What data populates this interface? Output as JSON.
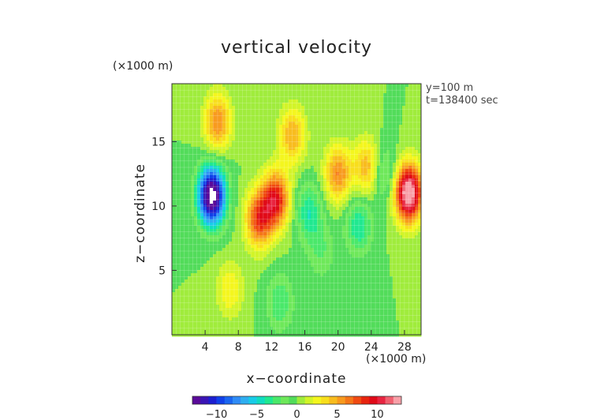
{
  "chart_data": {
    "type": "heatmap",
    "title": "vertical velocity",
    "xlabel": "x−coordinate",
    "ylabel": "z−coordinate",
    "x_unit": "(×1000 m)",
    "y_unit": "(×1000 m)",
    "annotations": [
      "y=100 m",
      "t=138400 sec"
    ],
    "xlim": [
      0,
      30
    ],
    "ylim": [
      0,
      19.5
    ],
    "x_ticks": [
      4,
      8,
      12,
      16,
      20,
      24,
      28
    ],
    "y_ticks": [
      5,
      10,
      15
    ],
    "colorbar": {
      "range": [
        -13,
        13
      ],
      "ticks": [
        -10,
        -5,
        0,
        5,
        10
      ],
      "tick_labels": [
        "−10",
        "−5",
        "0",
        "5",
        "10"
      ],
      "colors": [
        "#5a0a9a",
        "#3a14b4",
        "#1c1ed0",
        "#1040e8",
        "#1a66f0",
        "#2f8cf6",
        "#2eaef0",
        "#18cce8",
        "#10dcc0",
        "#20e890",
        "#4ae86a",
        "#6ee85a",
        "#52dc5a",
        "#a0ec3c",
        "#d2f428",
        "#f4f61e",
        "#f8de1c",
        "#f8bc1e",
        "#f89a1e",
        "#f47618",
        "#f04a12",
        "#e8240e",
        "#e00a18",
        "#e82440",
        "#f06070",
        "#f8a0a8"
      ]
    },
    "grid": true,
    "features": [
      {
        "x": 4.8,
        "z": 10.8,
        "value": -15,
        "note": "strongest downdraft, white saturated core"
      },
      {
        "x": 28.5,
        "z": 11.0,
        "value": 14,
        "note": "strongest updraft near right edge"
      },
      {
        "x": 10.5,
        "z": 9.0,
        "value": 8
      },
      {
        "x": 12.5,
        "z": 10.5,
        "value": 9
      },
      {
        "x": 20.0,
        "z": 12.5,
        "value": 6
      },
      {
        "x": 23.5,
        "z": 13.0,
        "value": 5
      },
      {
        "x": 14.5,
        "z": 15.5,
        "value": 5
      },
      {
        "x": 5.5,
        "z": 16.5,
        "value": 6
      },
      {
        "x": 16.5,
        "z": 9.5,
        "value": -4
      },
      {
        "x": 22.5,
        "z": 8.5,
        "value": -4
      },
      {
        "x": 25.5,
        "z": 12.5,
        "value": -3
      },
      {
        "x": 18.0,
        "z": 6.5,
        "value": -2
      },
      {
        "x": 13.0,
        "z": 2.5,
        "value": -3
      },
      {
        "x": 7.0,
        "z": 3.5,
        "value": 3
      }
    ]
  }
}
